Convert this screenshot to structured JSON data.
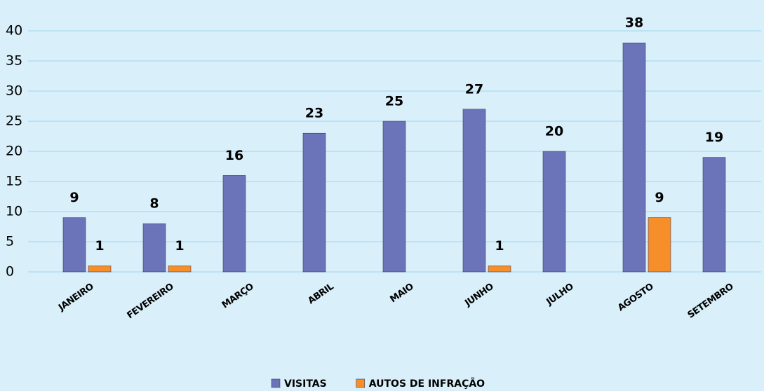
{
  "chart_data": {
    "type": "bar",
    "categories": [
      "JANEIRO",
      "FEVEREIRO",
      "MARÇO",
      "ABRIL",
      "MAIO",
      "JUNHO",
      "JULHO",
      "AGOSTO",
      "SETEMBRO"
    ],
    "series": [
      {
        "name": "VISITAS",
        "color": "#6b73b9",
        "values": [
          9,
          8,
          16,
          23,
          25,
          27,
          20,
          38,
          19
        ]
      },
      {
        "name": "AUTOS DE INFRAÇÃO",
        "color": "#f68f2a",
        "values": [
          1,
          1,
          null,
          null,
          null,
          1,
          null,
          9,
          null
        ]
      }
    ],
    "ylim": [
      0,
      40
    ],
    "yticks": [
      0,
      5,
      10,
      15,
      20,
      25,
      30,
      35,
      40
    ],
    "grid": true,
    "legend": "bottom"
  }
}
